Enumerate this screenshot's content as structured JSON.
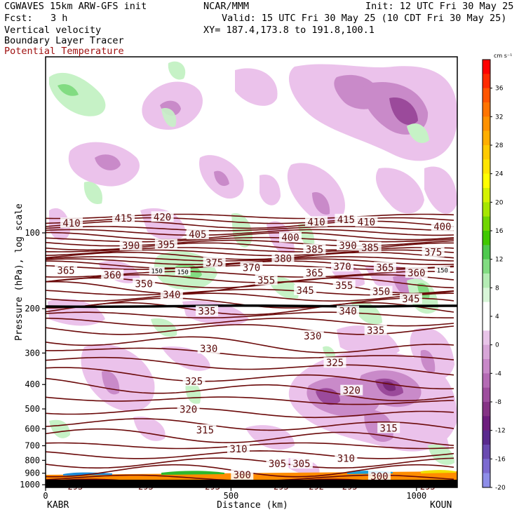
{
  "header": {
    "model": "CGWAVES 15km ARW-GFS init",
    "org": "NCAR/MMM",
    "init": "Init: 12 UTC Fri 30 May 25",
    "fcst_label": "Fcst:",
    "fcst_value": "3 h",
    "valid": "Valid: 15 UTC Fri 30 May 25 (10 CDT Fri 30 May 25)",
    "xy": "XY= 187.4,173.8 to 191.8,100.1",
    "field1": "Vertical velocity",
    "field2": "Boundary Layer Tracer",
    "field3": "Potential Temperature"
  },
  "colors": {
    "theta": "#6b0a0a",
    "frame": "#000000",
    "up_light": "#c6f2c6",
    "down_light": "#ebc2eb",
    "down_mid": "#c98ac9",
    "down_dark": "#9b4a9b",
    "pbl": "#ff8c00"
  },
  "chart_data": {
    "type": "heatmap",
    "xlabel": "Distance (km)",
    "ylabel": "Pressure (hPa), log scale",
    "x_ticks": [
      "0",
      "500",
      "1000"
    ],
    "x_ticks_km": [
      0,
      500,
      1000
    ],
    "xlim": [
      0,
      1110
    ],
    "y_ticks": [
      "100",
      "200",
      "300",
      "400",
      "500",
      "600",
      "700",
      "800",
      "900",
      "1000"
    ],
    "y_ticks_hpa": [
      100,
      200,
      300,
      400,
      500,
      600,
      700,
      800,
      900,
      1000
    ],
    "ylim": [
      1025,
      20
    ],
    "y_scale": "log",
    "left_station": "KABR",
    "right_station": "KOUN",
    "colorbar": {
      "units": "cm s⁻¹",
      "labels": [
        "36",
        "32",
        "28",
        "24",
        "20",
        "16",
        "12",
        "8",
        "4",
        "0",
        "-4",
        "-8",
        "-12",
        "-16",
        "-20"
      ],
      "values": [
        36,
        32,
        28,
        24,
        20,
        16,
        12,
        8,
        4,
        0,
        -4,
        -8,
        -12,
        -16,
        -20
      ],
      "colors": [
        "#ff0000",
        "#ff2a00",
        "#ff5500",
        "#ff7400",
        "#ff9100",
        "#ffae00",
        "#ffca00",
        "#ffe500",
        "#ffff00",
        "#d4f200",
        "#a6e600",
        "#70d600",
        "#40c800",
        "#4ec94e",
        "#82dc82",
        "#b4ecb4",
        "#d8f6d8",
        "#ffffff",
        "#ffffff",
        "#e8c4e8",
        "#d8a6d8",
        "#c888c8",
        "#b46ab4",
        "#9e4e9e",
        "#853385",
        "#6e1e7e",
        "#5a2a8e",
        "#6a4ab0",
        "#7c6ad0",
        "#8e8ee8"
      ]
    },
    "theta_labels": [
      {
        "text": "415",
        "km": 210,
        "hpa": 88
      },
      {
        "text": "420",
        "km": 315,
        "hpa": 87
      },
      {
        "text": "410",
        "km": 70,
        "hpa": 92
      },
      {
        "text": "410",
        "km": 730,
        "hpa": 91
      },
      {
        "text": "415",
        "km": 810,
        "hpa": 89
      },
      {
        "text": "410",
        "km": 865,
        "hpa": 91
      },
      {
        "text": "400",
        "km": 1070,
        "hpa": 95
      },
      {
        "text": "405",
        "km": 410,
        "hpa": 102
      },
      {
        "text": "400",
        "km": 660,
        "hpa": 105
      },
      {
        "text": "390",
        "km": 230,
        "hpa": 113
      },
      {
        "text": "395",
        "km": 325,
        "hpa": 112
      },
      {
        "text": "390",
        "km": 815,
        "hpa": 113
      },
      {
        "text": "385",
        "km": 875,
        "hpa": 115
      },
      {
        "text": "385",
        "km": 725,
        "hpa": 117
      },
      {
        "text": "380",
        "km": 640,
        "hpa": 127
      },
      {
        "text": "375",
        "km": 455,
        "hpa": 132
      },
      {
        "text": "375",
        "km": 1045,
        "hpa": 120
      },
      {
        "text": "370",
        "km": 555,
        "hpa": 138
      },
      {
        "text": "370",
        "km": 800,
        "hpa": 137
      },
      {
        "text": "365",
        "km": 915,
        "hpa": 138
      },
      {
        "text": "365",
        "km": 55,
        "hpa": 142
      },
      {
        "text": "360",
        "km": 180,
        "hpa": 148
      },
      {
        "text": "360",
        "km": 1000,
        "hpa": 145
      },
      {
        "text": "365",
        "km": 725,
        "hpa": 145
      },
      {
        "text": "355",
        "km": 595,
        "hpa": 155
      },
      {
        "text": "355",
        "km": 805,
        "hpa": 163
      },
      {
        "text": "350",
        "km": 265,
        "hpa": 160
      },
      {
        "text": "350",
        "km": 905,
        "hpa": 172
      },
      {
        "text": "345",
        "km": 700,
        "hpa": 170
      },
      {
        "text": "345",
        "km": 985,
        "hpa": 184
      },
      {
        "text": "340",
        "km": 340,
        "hpa": 177
      },
      {
        "text": "340",
        "km": 815,
        "hpa": 206
      },
      {
        "text": "335",
        "km": 435,
        "hpa": 206
      },
      {
        "text": "335",
        "km": 890,
        "hpa": 245
      },
      {
        "text": "330",
        "km": 440,
        "hpa": 290
      },
      {
        "text": "330",
        "km": 720,
        "hpa": 258
      },
      {
        "text": "325",
        "km": 400,
        "hpa": 390
      },
      {
        "text": "325",
        "km": 780,
        "hpa": 330
      },
      {
        "text": "320",
        "km": 385,
        "hpa": 505
      },
      {
        "text": "320",
        "km": 825,
        "hpa": 425
      },
      {
        "text": "315",
        "km": 430,
        "hpa": 610
      },
      {
        "text": "315",
        "km": 925,
        "hpa": 600
      },
      {
        "text": "310",
        "km": 520,
        "hpa": 725
      },
      {
        "text": "310",
        "km": 810,
        "hpa": 790
      },
      {
        "text": "305",
        "km": 625,
        "hpa": 830
      },
      {
        "text": "305",
        "km": 690,
        "hpa": 830
      },
      {
        "text": "300",
        "km": 530,
        "hpa": 920
      },
      {
        "text": "300",
        "km": 900,
        "hpa": 930
      },
      {
        "text": "295",
        "km": 635,
        "hpa": 1030
      },
      {
        "text": "295",
        "km": 820,
        "hpa": 1050
      },
      {
        "text": "293",
        "km": 80,
        "hpa": 1160
      },
      {
        "text": "293",
        "km": 270,
        "hpa": 1160
      },
      {
        "text": "293",
        "km": 450,
        "hpa": 1160
      },
      {
        "text": "292",
        "km": 730,
        "hpa": 1160
      },
      {
        "text": "293",
        "km": 1030,
        "hpa": 1160
      }
    ],
    "tropopause_labels": [
      {
        "text": "150",
        "km": 300,
        "hpa": 142
      },
      {
        "text": "150",
        "km": 370,
        "hpa": 143
      },
      {
        "text": "150",
        "km": 1070,
        "hpa": 141
      }
    ]
  }
}
